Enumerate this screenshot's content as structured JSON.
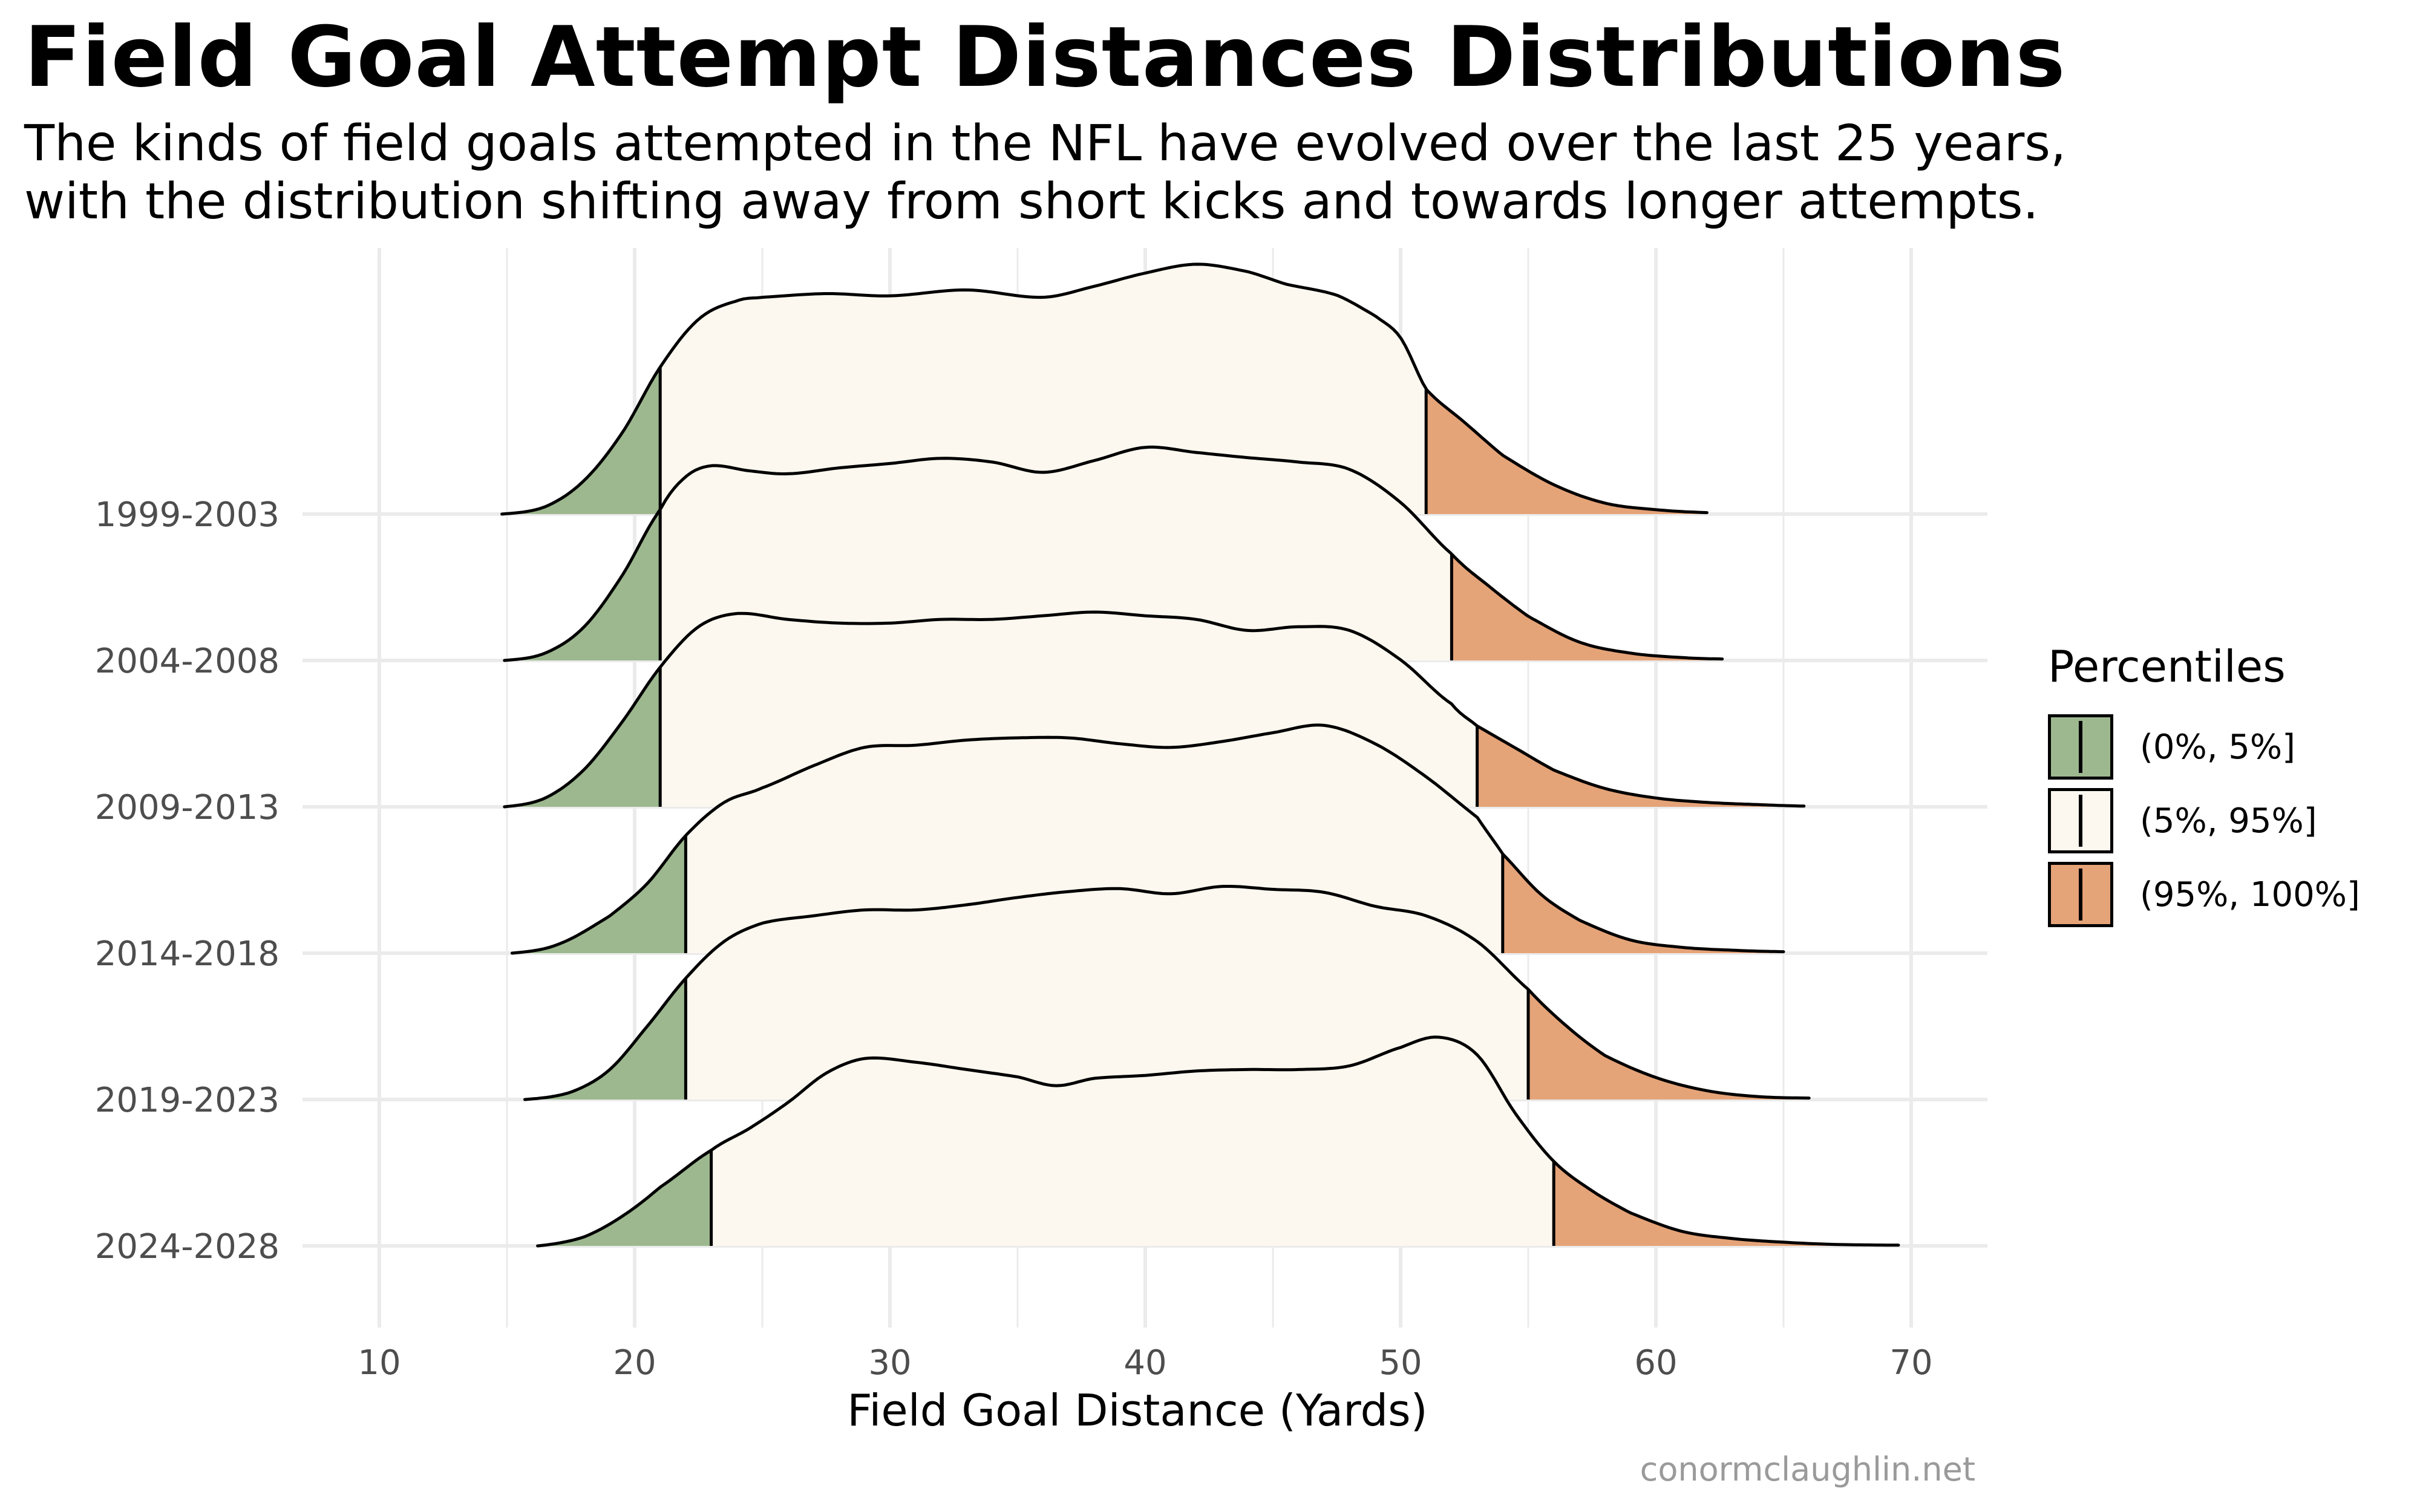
{
  "title": "Field Goal Attempt Distances Distributions",
  "subtitle_lines": [
    "The kinds of field goals attempted in the NFL have evolved over the last 25 years,",
    "with the distribution shifting away from short kicks and towards longer attempts."
  ],
  "caption": "conormclaughlin.net",
  "colors": {
    "low": "#9db88f",
    "mid": "#fcf8ef",
    "high": "#e5a378",
    "outline": "#000000",
    "grid": "#ebebeb",
    "tick_text": "#4d4d4d"
  },
  "legend": {
    "title": "Percentiles",
    "items": [
      {
        "label": "(0%, 5%]",
        "color": "#9db88f"
      },
      {
        "label": "(5%, 95%]",
        "color": "#fcf8ef"
      },
      {
        "label": "(95%, 100%]",
        "color": "#e5a378"
      }
    ]
  },
  "chart_data": {
    "type": "ridgeline",
    "xlabel": "Field Goal Distance (Yards)",
    "ylabel": "",
    "xlim": [
      7,
      73
    ],
    "xticks": [
      10,
      20,
      30,
      40,
      50,
      60,
      70
    ],
    "grid": true,
    "legend_position": "right",
    "categories": [
      "1999-2003",
      "2004-2008",
      "2009-2013",
      "2014-2018",
      "2019-2023",
      "2024-2028"
    ],
    "series": [
      {
        "category": "1999-2003",
        "p5": 21,
        "p95": 51,
        "x": [
          14.8,
          16.5,
          18,
          19.5,
          21,
          22.5,
          24,
          25,
          27.5,
          30,
          33,
          36,
          38,
          40,
          42,
          44,
          45.5,
          47.5,
          49,
          50,
          51,
          52.5,
          54,
          56,
          58,
          60,
          62
        ],
        "density": [
          0,
          0.01,
          0.045,
          0.11,
          0.2,
          0.265,
          0.29,
          0.295,
          0.3,
          0.297,
          0.305,
          0.295,
          0.31,
          0.328,
          0.34,
          0.33,
          0.313,
          0.298,
          0.27,
          0.24,
          0.17,
          0.125,
          0.08,
          0.04,
          0.015,
          0.006,
          0.002
        ]
      },
      {
        "category": "2004-2008",
        "p5": 21,
        "p95": 52,
        "x": [
          14.9,
          16.5,
          18,
          19.5,
          21,
          22,
          23,
          24.5,
          26,
          28,
          30,
          32,
          34,
          36,
          38,
          40,
          42,
          44,
          46,
          48,
          50,
          52,
          53.5,
          55,
          57,
          59,
          61,
          62.6
        ],
        "density": [
          0,
          0.01,
          0.045,
          0.115,
          0.205,
          0.25,
          0.265,
          0.258,
          0.254,
          0.262,
          0.268,
          0.275,
          0.27,
          0.256,
          0.272,
          0.29,
          0.283,
          0.276,
          0.27,
          0.26,
          0.215,
          0.145,
          0.1,
          0.06,
          0.025,
          0.01,
          0.004,
          0.002
        ]
      },
      {
        "category": "2009-2013",
        "p5": 21,
        "p95": 53,
        "x": [
          14.9,
          16.5,
          18,
          19.5,
          21,
          22.5,
          24,
          26,
          28,
          30,
          32,
          34,
          36,
          38,
          40,
          42,
          44,
          46,
          48,
          50,
          52,
          53,
          54.5,
          56,
          58,
          60,
          62,
          64,
          65.8
        ],
        "density": [
          0,
          0.012,
          0.05,
          0.115,
          0.19,
          0.245,
          0.263,
          0.255,
          0.25,
          0.25,
          0.255,
          0.255,
          0.26,
          0.265,
          0.26,
          0.255,
          0.24,
          0.245,
          0.24,
          0.2,
          0.14,
          0.11,
          0.08,
          0.05,
          0.025,
          0.012,
          0.006,
          0.003,
          0.001
        ]
      },
      {
        "category": "2014-2018",
        "p5": 22,
        "p95": 54,
        "x": [
          15.2,
          17,
          19,
          20.5,
          22,
          23.5,
          25,
          27,
          29,
          31,
          33,
          35,
          37,
          39,
          41,
          43,
          45,
          47,
          49,
          51,
          53,
          54,
          55.5,
          57,
          59,
          61,
          63,
          65
        ],
        "density": [
          0,
          0.012,
          0.05,
          0.095,
          0.16,
          0.205,
          0.225,
          0.255,
          0.28,
          0.283,
          0.29,
          0.293,
          0.293,
          0.285,
          0.28,
          0.288,
          0.3,
          0.31,
          0.285,
          0.24,
          0.185,
          0.135,
          0.08,
          0.045,
          0.018,
          0.008,
          0.004,
          0.002
        ]
      },
      {
        "category": "2019-2023",
        "p5": 22,
        "p95": 55,
        "x": [
          15.7,
          17.5,
          19,
          20.5,
          22,
          23.5,
          25,
          27,
          29,
          31,
          33,
          35,
          37,
          39,
          41,
          43,
          45,
          47,
          49,
          51,
          53,
          55,
          56.5,
          58,
          60,
          62,
          64,
          66
        ],
        "density": [
          0,
          0.01,
          0.04,
          0.1,
          0.165,
          0.215,
          0.24,
          0.25,
          0.258,
          0.258,
          0.265,
          0.275,
          0.283,
          0.287,
          0.28,
          0.29,
          0.286,
          0.282,
          0.263,
          0.25,
          0.215,
          0.15,
          0.1,
          0.06,
          0.03,
          0.012,
          0.004,
          0.002
        ]
      },
      {
        "category": "2024-2028",
        "p5": 23,
        "p95": 56,
        "x": [
          16.2,
          18,
          19.5,
          21,
          23,
          24.5,
          26,
          27.5,
          29,
          31,
          33,
          35,
          36.5,
          38,
          40,
          42,
          44,
          46,
          48,
          50,
          51.5,
          53,
          54.5,
          56,
          57.5,
          59,
          61,
          63,
          65,
          67,
          69.5
        ],
        "density": [
          0,
          0.012,
          0.04,
          0.08,
          0.13,
          0.16,
          0.195,
          0.235,
          0.255,
          0.25,
          0.24,
          0.23,
          0.218,
          0.228,
          0.232,
          0.238,
          0.24,
          0.24,
          0.245,
          0.27,
          0.284,
          0.26,
          0.18,
          0.115,
          0.075,
          0.045,
          0.02,
          0.01,
          0.005,
          0.002,
          0.001
        ]
      }
    ]
  }
}
